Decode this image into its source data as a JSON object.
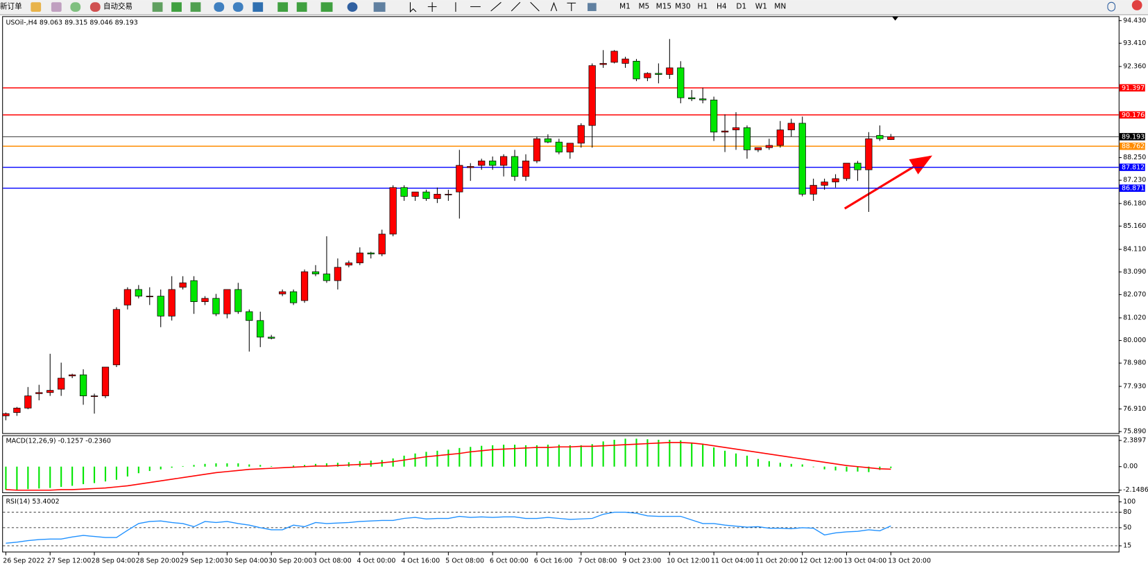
{
  "toolbar": {
    "new_order": "新订单",
    "auto_trading": "自动交易",
    "timeframes": [
      "M1",
      "M5",
      "M15",
      "M30",
      "H1",
      "H4",
      "D1",
      "W1",
      "MN"
    ]
  },
  "chart_data": [
    {
      "type": "candlestick",
      "title": "USOil-,H4 89.063 89.315 89.046 89.193",
      "categories": [
        "26 Sep 2022",
        null,
        null,
        null,
        "27 Sep 12:00",
        null,
        null,
        null,
        "28 Sep 04:00",
        null,
        null,
        null,
        "28 Sep 20:00",
        null,
        null,
        null,
        "29 Sep 12:00",
        null,
        null,
        null,
        "30 Sep 04:00",
        null,
        null,
        null,
        "30 Sep 20:00",
        null,
        null,
        null,
        "3 Oct 08:00",
        null,
        null,
        null,
        "4 Oct 00:00",
        null,
        null,
        null,
        "4 Oct 16:00",
        null,
        null,
        null,
        "5 Oct 08:00",
        null,
        null,
        null,
        "6 Oct 00:00",
        null,
        null,
        null,
        "6 Oct 16:00",
        null,
        null,
        null,
        "7 Oct 08:00",
        null,
        null,
        null,
        "9 Oct 23:00",
        null,
        null,
        null,
        "10 Oct 12:00",
        null,
        null,
        null,
        "11 Oct 04:00",
        null,
        null,
        null,
        "11 Oct 20:00",
        null,
        null,
        null,
        "12 Oct 12:00",
        null,
        null,
        null,
        "13 Oct 04:00",
        null,
        null,
        null,
        "13 Oct 20:00"
      ],
      "open": [
        76.6,
        76.75,
        76.95,
        77.6,
        77.65,
        77.8,
        78.4,
        78.45,
        77.5,
        77.5,
        78.9,
        81.6,
        82.3,
        82.0,
        82.0,
        81.1,
        82.4,
        82.7,
        81.75,
        81.9,
        81.2,
        82.3,
        81.3,
        80.9,
        80.15,
        82.1,
        82.2,
        81.8,
        83.1,
        83.0,
        82.7,
        83.4,
        83.5,
        83.95,
        83.9,
        84.8,
        86.9,
        86.5,
        86.7,
        86.4,
        86.6,
        86.7,
        87.8,
        87.9,
        88.1,
        87.9,
        88.3,
        87.4,
        88.1,
        89.1,
        88.95,
        88.5,
        88.9,
        89.7,
        92.45,
        92.55,
        92.5,
        92.6,
        91.85,
        92.05,
        92.0,
        92.3,
        90.95,
        90.9,
        90.85,
        89.4,
        89.5,
        89.6,
        88.6,
        88.7,
        88.8,
        89.5,
        89.8,
        86.6,
        87.0,
        87.15,
        87.3,
        88.0,
        87.7,
        89.25,
        89.063
      ],
      "high": [
        76.75,
        77.0,
        77.9,
        78.0,
        79.4,
        79.0,
        78.5,
        78.7,
        77.6,
        78.8,
        81.5,
        82.4,
        82.5,
        82.4,
        82.3,
        82.9,
        82.9,
        82.9,
        82.0,
        82.1,
        82.3,
        82.6,
        81.4,
        81.3,
        80.25,
        82.3,
        82.3,
        83.2,
        83.4,
        84.7,
        83.7,
        83.6,
        84.2,
        84.0,
        85.0,
        87.0,
        87.0,
        86.7,
        86.8,
        86.9,
        86.8,
        88.6,
        88.0,
        88.2,
        88.3,
        88.4,
        88.6,
        88.4,
        89.2,
        89.3,
        89.1,
        88.9,
        89.8,
        92.5,
        93.1,
        93.1,
        92.8,
        92.7,
        92.1,
        92.5,
        93.6,
        92.6,
        91.3,
        91.4,
        91.0,
        90.2,
        90.3,
        89.7,
        88.7,
        89.1,
        89.9,
        90.0,
        90.1,
        87.3,
        87.3,
        87.5,
        88.0,
        88.1,
        89.4,
        89.7,
        89.315
      ],
      "low": [
        76.4,
        76.6,
        76.9,
        77.3,
        77.5,
        77.5,
        78.3,
        77.1,
        76.7,
        77.4,
        78.8,
        81.4,
        81.9,
        81.6,
        80.6,
        80.9,
        82.3,
        81.2,
        81.6,
        81.1,
        81.0,
        81.2,
        79.5,
        79.7,
        80.05,
        82.0,
        81.6,
        81.7,
        82.9,
        82.6,
        82.3,
        83.3,
        83.4,
        83.7,
        83.8,
        84.7,
        86.3,
        86.3,
        86.3,
        86.2,
        86.3,
        85.5,
        87.2,
        87.7,
        87.7,
        87.4,
        87.2,
        87.2,
        88.0,
        88.9,
        88.4,
        88.2,
        88.7,
        88.7,
        92.3,
        92.5,
        92.3,
        91.7,
        91.7,
        91.6,
        91.8,
        90.7,
        90.8,
        90.7,
        89.0,
        88.5,
        88.6,
        88.2,
        88.5,
        88.6,
        88.7,
        89.2,
        86.5,
        86.3,
        86.8,
        86.9,
        87.2,
        87.2,
        85.8,
        89.0,
        89.046
      ],
      "close": [
        76.7,
        76.95,
        77.5,
        77.65,
        77.75,
        78.3,
        78.45,
        77.5,
        77.5,
        78.8,
        81.4,
        82.3,
        82.0,
        82.0,
        81.1,
        82.3,
        82.6,
        81.75,
        81.9,
        81.2,
        82.3,
        81.3,
        80.9,
        80.15,
        80.1,
        82.2,
        81.7,
        83.1,
        83.0,
        82.7,
        83.3,
        83.5,
        83.95,
        83.9,
        84.8,
        86.9,
        86.5,
        86.7,
        86.4,
        86.6,
        86.6,
        87.9,
        87.85,
        88.1,
        87.9,
        88.3,
        87.4,
        88.1,
        89.1,
        88.95,
        88.5,
        88.9,
        89.7,
        92.4,
        92.5,
        93.05,
        92.7,
        91.8,
        92.05,
        92.0,
        92.3,
        90.95,
        90.9,
        90.85,
        89.4,
        89.45,
        89.6,
        88.6,
        88.7,
        88.8,
        89.5,
        89.8,
        86.6,
        87.0,
        87.15,
        87.3,
        88.0,
        87.7,
        89.1,
        89.1,
        89.193
      ],
      "up_color": "#ff0000",
      "down_color": "#00e600",
      "ylim": [
        75.82,
        94.63
      ],
      "yticks": [
        {
          "value": 94.43,
          "label": "94.430"
        },
        {
          "value": 93.41,
          "label": "93.410"
        },
        {
          "value": 92.36,
          "label": "92.360"
        },
        {
          "value": 88.25,
          "label": "88.250"
        },
        {
          "value": 87.23,
          "label": "87.230"
        },
        {
          "value": 86.18,
          "label": "86.180"
        },
        {
          "value": 85.16,
          "label": "85.160"
        },
        {
          "value": 84.11,
          "label": "84.110"
        },
        {
          "value": 83.09,
          "label": "83.090"
        },
        {
          "value": 82.07,
          "label": "82.070"
        },
        {
          "value": 81.02,
          "label": "81.020"
        },
        {
          "value": 80,
          "label": "80.000"
        },
        {
          "value": 78.98,
          "label": "78.980"
        },
        {
          "value": 77.93,
          "label": "77.930"
        },
        {
          "value": 76.91,
          "label": "76.910"
        },
        {
          "value": 75.89,
          "label": "75.890"
        }
      ],
      "hlines": [
        {
          "value": 91.397,
          "color": "#ff0000"
        },
        {
          "value": 90.176,
          "color": "#ff0000"
        },
        {
          "value": 89.193,
          "color": "#000000"
        },
        {
          "value": 88.762,
          "color": "#ff8c00"
        },
        {
          "value": 87.812,
          "color": "#0000ff"
        },
        {
          "value": 86.871,
          "color": "#0000ff"
        }
      ]
    },
    {
      "type": "macd",
      "title": "MACD(12,26,9) -0.1257 -0.2360",
      "values": [
        -2.1,
        -2.1,
        -2.05,
        -2.0,
        -1.95,
        -1.85,
        -1.75,
        -1.6,
        -1.5,
        -1.35,
        -1.2,
        -0.9,
        -0.6,
        -0.4,
        -0.25,
        -0.1,
        0.05,
        0.15,
        0.25,
        0.3,
        0.3,
        0.3,
        0.2,
        0.15,
        0.05,
        0.0,
        0.1,
        0.15,
        0.25,
        0.3,
        0.35,
        0.4,
        0.5,
        0.55,
        0.6,
        0.75,
        1.0,
        1.2,
        1.35,
        1.45,
        1.55,
        1.7,
        1.8,
        1.9,
        1.95,
        2.0,
        2.0,
        1.95,
        1.95,
        2.0,
        2.0,
        1.95,
        1.95,
        2.05,
        2.3,
        2.45,
        2.55,
        2.55,
        2.5,
        2.45,
        2.45,
        2.4,
        2.2,
        2.0,
        1.75,
        1.45,
        1.2,
        1.0,
        0.7,
        0.5,
        0.35,
        0.25,
        0.2,
        -0.05,
        -0.25,
        -0.35,
        -0.45,
        -0.45,
        -0.5,
        -0.3,
        -0.1257
      ],
      "color": "#00e600",
      "signal_values": [
        -2.1,
        -2.15,
        -2.15,
        -2.15,
        -2.15,
        -2.1,
        -2.1,
        -2.05,
        -2.0,
        -1.95,
        -1.85,
        -1.75,
        -1.6,
        -1.45,
        -1.3,
        -1.15,
        -1.0,
        -0.85,
        -0.7,
        -0.55,
        -0.45,
        -0.35,
        -0.25,
        -0.2,
        -0.15,
        -0.1,
        -0.05,
        0.0,
        0.05,
        0.05,
        0.1,
        0.15,
        0.2,
        0.25,
        0.35,
        0.45,
        0.6,
        0.75,
        0.9,
        1.0,
        1.1,
        1.2,
        1.35,
        1.45,
        1.55,
        1.6,
        1.65,
        1.7,
        1.75,
        1.75,
        1.8,
        1.8,
        1.85,
        1.85,
        1.9,
        1.95,
        2.0,
        2.05,
        2.1,
        2.15,
        2.2,
        2.2,
        2.15,
        2.05,
        1.9,
        1.75,
        1.6,
        1.45,
        1.3,
        1.15,
        1.0,
        0.85,
        0.7,
        0.55,
        0.4,
        0.25,
        0.1,
        0.0,
        -0.1,
        -0.2,
        -0.236
      ],
      "signal_color": "#ff0000",
      "ylim": [
        -2.35,
        2.79
      ],
      "yticks": [
        2.3897,
        {
          "value": 0,
          "label": "0.00"
        },
        -2.1486
      ]
    },
    {
      "type": "line",
      "title": "RSI(14) 53.4002",
      "values": [
        20,
        22,
        25,
        27,
        28,
        28,
        32,
        35,
        33,
        31,
        31,
        45,
        58,
        62,
        63,
        60,
        58,
        52,
        62,
        60,
        62,
        58,
        55,
        50,
        46,
        46,
        55,
        52,
        60,
        58,
        59,
        60,
        62,
        63,
        64,
        64,
        68,
        70,
        67,
        68,
        68,
        72,
        70,
        71,
        70,
        71,
        71,
        68,
        68,
        70,
        68,
        66,
        67,
        68,
        76,
        80,
        80,
        78,
        73,
        72,
        72,
        72,
        65,
        58,
        58,
        55,
        53,
        51,
        52,
        49,
        49,
        48,
        50,
        49,
        36,
        40,
        42,
        43,
        46,
        44,
        53.4002
      ],
      "color": "#1e90ff",
      "ylim": [
        3.7,
        111.3
      ],
      "yticks": [
        100,
        80,
        50,
        15
      ],
      "levels": [
        80,
        50,
        15
      ]
    }
  ]
}
